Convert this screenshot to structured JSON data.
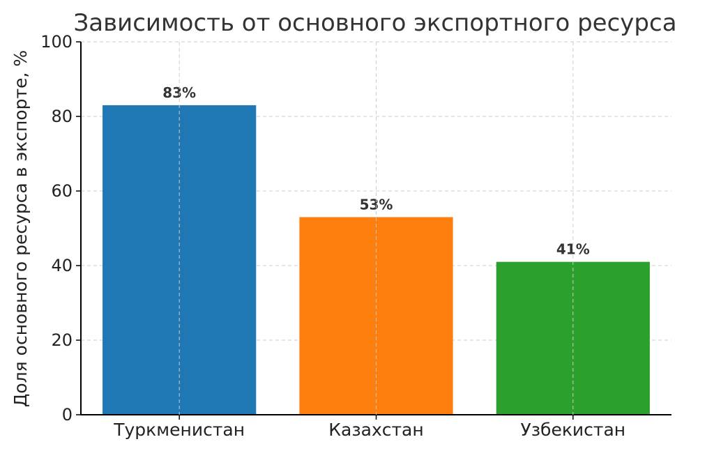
{
  "chart_data": {
    "type": "bar",
    "title": "Зависимость от основного экспортного ресурса",
    "xlabel": "",
    "ylabel": "Доля основного ресурса в экспорте, %",
    "categories": [
      "Туркменистан",
      "Казахстан",
      "Узбекистан"
    ],
    "values": [
      83,
      53,
      41
    ],
    "data_labels": [
      "83%",
      "53%",
      "41%"
    ],
    "colors": [
      "#1f77b4",
      "#ff7f0e",
      "#2ca02c"
    ],
    "ylim": [
      0,
      100
    ],
    "yticks": [
      0,
      20,
      40,
      60,
      80,
      100
    ],
    "grid": true
  }
}
